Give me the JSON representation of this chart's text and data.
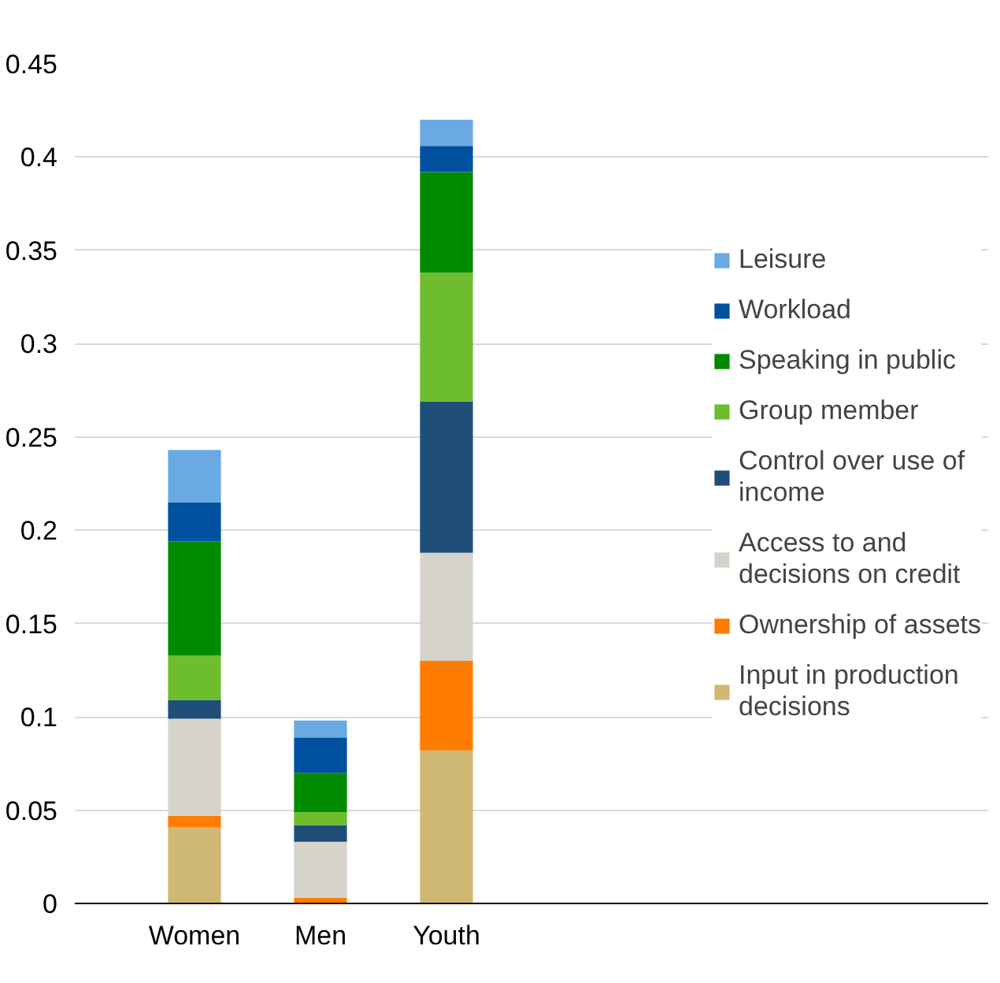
{
  "chart_data": {
    "type": "bar",
    "stacked": true,
    "categories": [
      "Women",
      "Men",
      "Youth"
    ],
    "series": [
      {
        "name": "Input in production decisions",
        "color": "#cfb873",
        "values": [
          0.041,
          null,
          0.082
        ]
      },
      {
        "name": "Ownership of assets",
        "color": "#ff7c00",
        "values": [
          0.006,
          0.003,
          0.048
        ]
      },
      {
        "name": "Access to and decisions on credit",
        "color": "#d6d3cb",
        "values": [
          0.052,
          0.03,
          0.058
        ]
      },
      {
        "name": "Control over use of income",
        "color": "#1f4e79",
        "values": [
          0.01,
          0.009,
          0.081
        ]
      },
      {
        "name": "Group member",
        "color": "#6ebd2e",
        "values": [
          0.024,
          0.007,
          0.069
        ]
      },
      {
        "name": "Speaking in public",
        "color": "#008a00",
        "values": [
          0.061,
          0.021,
          0.054
        ]
      },
      {
        "name": "Workload",
        "color": "#0050a0",
        "values": [
          0.021,
          0.019,
          0.014
        ]
      },
      {
        "name": "Leisure",
        "color": "#6aaae2",
        "values": [
          0.028,
          0.009,
          0.014
        ]
      }
    ],
    "ylim": [
      0,
      0.45
    ],
    "yticks": [
      0,
      0.05,
      0.1,
      0.15,
      0.2,
      0.25,
      0.3,
      0.35,
      0.4,
      0.45
    ],
    "grid": "y",
    "legend": "right"
  }
}
